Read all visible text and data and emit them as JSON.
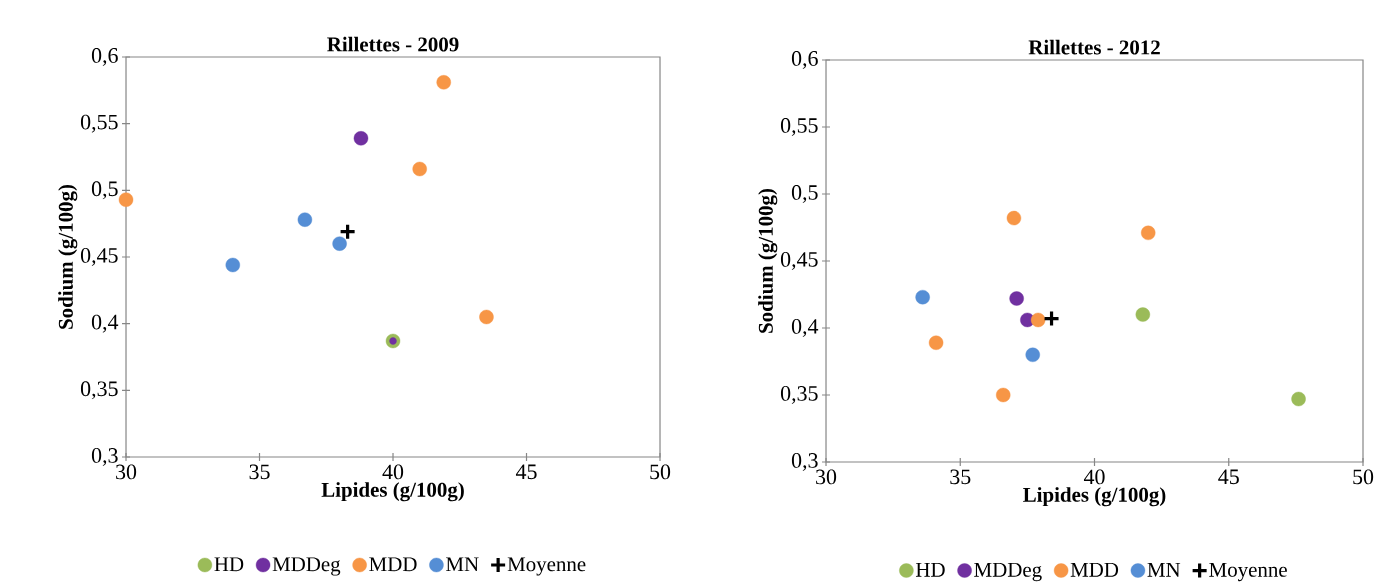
{
  "chart_data": [
    {
      "type": "scatter",
      "title": "Rillettes - 2009",
      "xlabel": "Lipides (g/100g)",
      "ylabel": "Sodium (g/100g)",
      "xlim": [
        30,
        50
      ],
      "ylim": [
        0.3,
        0.6
      ],
      "xticks": [
        30,
        35,
        40,
        45,
        50
      ],
      "yticks": [
        {
          "value": 0.3,
          "label": "0,3"
        },
        {
          "value": 0.35,
          "label": "0,35"
        },
        {
          "value": 0.4,
          "label": "0,4"
        },
        {
          "value": 0.45,
          "label": "0,45"
        },
        {
          "value": 0.5,
          "label": "0,5"
        },
        {
          "value": 0.55,
          "label": "0,55"
        },
        {
          "value": 0.6,
          "label": "0,6"
        }
      ],
      "grid": false,
      "legend": "bottom",
      "marker": "circle",
      "series": [
        {
          "name": "HD",
          "color": "#9bbb59",
          "x": [
            40
          ],
          "values": [
            0.387
          ]
        },
        {
          "name": "MDDeg",
          "color": "#7030a0",
          "x": [
            38.8,
            40
          ],
          "values": [
            0.539,
            0.387
          ]
        },
        {
          "name": "MDD",
          "color": "#f79646",
          "x": [
            30,
            41.9,
            41,
            43.5
          ],
          "values": [
            0.493,
            0.581,
            0.516,
            0.405
          ]
        },
        {
          "name": "MN",
          "color": "#558ed5",
          "x": [
            34,
            36.7,
            38
          ],
          "values": [
            0.444,
            0.478,
            0.46
          ]
        },
        {
          "name": "Moyenne",
          "color": "#000000",
          "marker": "cross",
          "x": [
            38.3
          ],
          "values": [
            0.469
          ]
        }
      ]
    },
    {
      "type": "scatter",
      "title": "Rillettes - 2012",
      "xlabel": "Lipides (g/100g)",
      "ylabel": "Sodium (g/100g)",
      "xlim": [
        30,
        50
      ],
      "ylim": [
        0.3,
        0.6
      ],
      "xticks": [
        30,
        35,
        40,
        45,
        50
      ],
      "yticks": [
        {
          "value": 0.3,
          "label": "0,3"
        },
        {
          "value": 0.35,
          "label": "0,35"
        },
        {
          "value": 0.4,
          "label": "0,4"
        },
        {
          "value": 0.45,
          "label": "0,45"
        },
        {
          "value": 0.5,
          "label": "0,5"
        },
        {
          "value": 0.55,
          "label": "0,55"
        },
        {
          "value": 0.6,
          "label": "0,6"
        }
      ],
      "grid": false,
      "legend": "bottom",
      "marker": "circle",
      "series": [
        {
          "name": "HD",
          "color": "#9bbb59",
          "x": [
            41.8,
            47.6
          ],
          "values": [
            0.41,
            0.347
          ]
        },
        {
          "name": "MDDeg",
          "color": "#7030a0",
          "x": [
            37.1,
            37.5
          ],
          "values": [
            0.422,
            0.406
          ]
        },
        {
          "name": "MDD",
          "color": "#f79646",
          "x": [
            37,
            42,
            34.1,
            36.6,
            37.9
          ],
          "values": [
            0.482,
            0.471,
            0.389,
            0.35,
            0.406
          ]
        },
        {
          "name": "MN",
          "color": "#558ed5",
          "x": [
            33.6,
            37.7
          ],
          "values": [
            0.423,
            0.38
          ]
        },
        {
          "name": "Moyenne",
          "color": "#000000",
          "marker": "cross",
          "x": [
            38.4
          ],
          "values": [
            0.407
          ]
        }
      ]
    }
  ]
}
